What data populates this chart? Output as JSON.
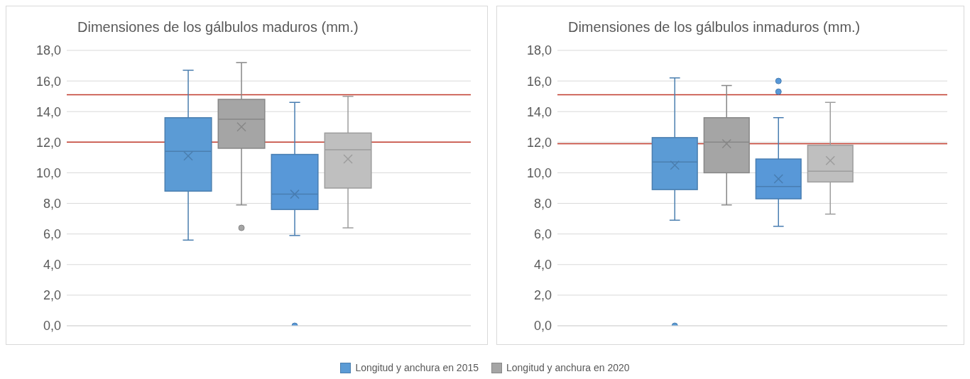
{
  "chart_data": [
    {
      "type": "box",
      "title": "Dimensiones de los gálbulos maduros (mm.)",
      "categories": [
        null
      ],
      "ylim": [
        0,
        18
      ],
      "yticks": [
        {
          "value": 0,
          "label": "0,0"
        },
        {
          "value": 2,
          "label": "2,0"
        },
        {
          "value": 4,
          "label": "4,0"
        },
        {
          "value": 6,
          "label": "6,0"
        },
        {
          "value": 8,
          "label": "8,0"
        },
        {
          "value": 10,
          "label": "10,0"
        },
        {
          "value": 12,
          "label": "12,0"
        },
        {
          "value": 14,
          "label": "14,0"
        },
        {
          "value": 16,
          "label": "16,0"
        },
        {
          "value": 18,
          "label": "18,0"
        }
      ],
      "grid": "y",
      "tick_labels": "y",
      "legend": "bottom",
      "ref_lines": [
        {
          "axis": "y",
          "value": 15.1,
          "color": "#c0392b"
        },
        {
          "axis": "y",
          "value": 12.0,
          "color": "#c0392b"
        }
      ],
      "series": [
        {
          "name": "Longitud y anchura en 2015",
          "color": "#5b9bd5",
          "boxes": [
            {
              "low": 5.6,
              "q1": 8.8,
              "median": 11.4,
              "q3": 13.6,
              "high": 16.7,
              "mean": 11.1
            }
          ]
        },
        {
          "name": "Longitud y anchura en 2020",
          "color": "#a5a5a5",
          "boxes": [
            {
              "low": 7.9,
              "q1": 11.6,
              "median": 13.5,
              "q3": 14.8,
              "high": 17.2,
              "mean": 13.0,
              "outliers": [
                6.4
              ]
            }
          ]
        },
        {
          "color": "#5898d8",
          "boxes": [
            {
              "low": 5.9,
              "q1": 7.6,
              "median": 8.6,
              "q3": 11.2,
              "high": 14.6,
              "mean": 8.6,
              "outliers": [
                0
              ]
            }
          ]
        },
        {
          "color": "#bfbfbf",
          "boxes": [
            {
              "low": 6.4,
              "q1": 9.0,
              "median": 11.5,
              "q3": 12.6,
              "high": 15.0,
              "mean": 10.9
            }
          ]
        }
      ]
    },
    {
      "type": "box",
      "title": "Dimensiones de los gálbulos inmaduros (mm.)",
      "categories": [
        null
      ],
      "ylim": [
        0,
        18
      ],
      "yticks": [
        {
          "value": 0,
          "label": "0,0"
        },
        {
          "value": 2,
          "label": "2,0"
        },
        {
          "value": 4,
          "label": "4,0"
        },
        {
          "value": 6,
          "label": "6,0"
        },
        {
          "value": 8,
          "label": "8,0"
        },
        {
          "value": 10,
          "label": "10,0"
        },
        {
          "value": 12,
          "label": "12,0"
        },
        {
          "value": 14,
          "label": "14,0"
        },
        {
          "value": 16,
          "label": "16,0"
        },
        {
          "value": 18,
          "label": "18,0"
        }
      ],
      "grid": "y",
      "tick_labels": "y",
      "ref_lines": [
        {
          "axis": "y",
          "value": 15.1,
          "color": "#c0392b"
        },
        {
          "axis": "y",
          "value": 11.9,
          "color": "#c0392b"
        }
      ],
      "series": [
        {
          "color": "#5b9bd5",
          "boxes": [
            {
              "low": 6.9,
              "q1": 8.9,
              "median": 10.7,
              "q3": 12.3,
              "high": 16.2,
              "mean": 10.5,
              "outliers": [
                0
              ]
            }
          ]
        },
        {
          "color": "#a5a5a5",
          "boxes": [
            {
              "low": 7.9,
              "q1": 10.0,
              "median": 12.0,
              "q3": 13.6,
              "high": 15.7,
              "mean": 11.9
            }
          ]
        },
        {
          "color": "#5898d8",
          "boxes": [
            {
              "low": 6.5,
              "q1": 8.3,
              "median": 9.1,
              "q3": 10.9,
              "high": 13.6,
              "mean": 9.6,
              "outliers": [
                16.0,
                15.3
              ]
            }
          ]
        },
        {
          "color": "#bfbfbf",
          "boxes": [
            {
              "low": 7.3,
              "q1": 9.4,
              "median": 10.1,
              "q3": 11.8,
              "high": 14.6,
              "mean": 10.8
            }
          ]
        }
      ]
    }
  ]
}
